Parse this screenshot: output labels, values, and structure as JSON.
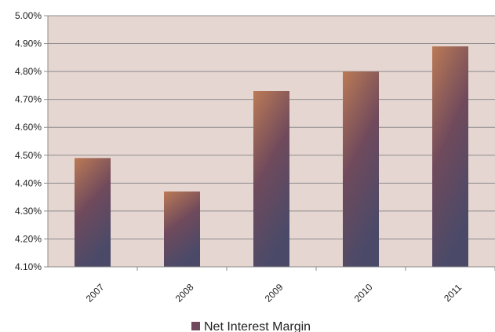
{
  "chart_data": {
    "type": "bar",
    "categories": [
      "2007",
      "2008",
      "2009",
      "2010",
      "2011"
    ],
    "series": [
      {
        "name": "Net Interest Margin",
        "values": [
          4.49,
          4.37,
          4.73,
          4.8,
          4.89
        ]
      }
    ],
    "ylim": [
      4.1,
      5.0
    ],
    "ytick_labels": [
      "4.10%",
      "4.20%",
      "4.30%",
      "4.40%",
      "4.50%",
      "4.60%",
      "4.70%",
      "4.80%",
      "4.90%",
      "5.00%"
    ],
    "grid": true,
    "legend_position": "bottom",
    "colors": {
      "plot_background": "#e6d6d1",
      "bar_top": "#bb7a55",
      "bar_middle": "#704a5c",
      "bar_bottom": "#4a4a68",
      "gridline": "#8c8c8c",
      "axis": "#8c8c8c"
    }
  }
}
